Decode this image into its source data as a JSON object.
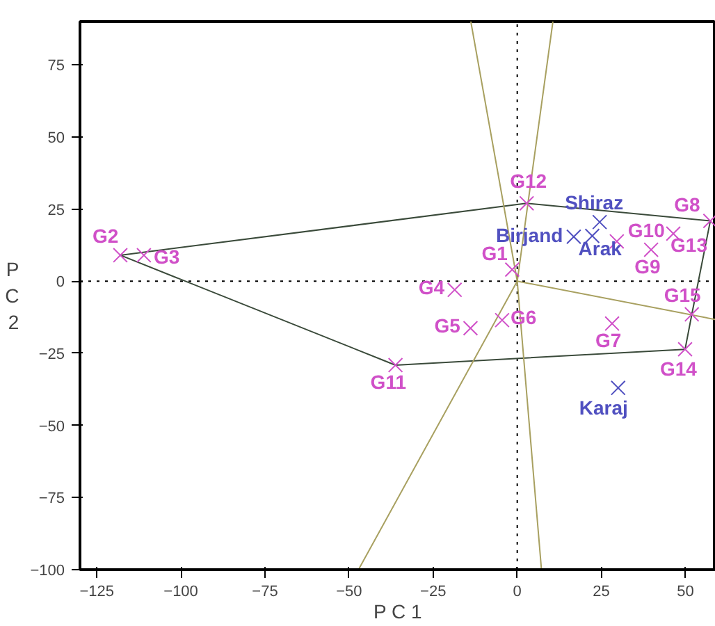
{
  "chart_data": {
    "type": "scatter",
    "xlabel": "P C 1",
    "ylabel": "P C 2",
    "xlim": [
      -130,
      59
    ],
    "ylim": [
      -100,
      90
    ],
    "xticks": [
      -125,
      -100,
      -75,
      -50,
      -25,
      0,
      25,
      50
    ],
    "yticks": [
      -100,
      -75,
      -50,
      -25,
      0,
      25,
      50,
      75
    ],
    "grid": false,
    "series": [
      {
        "type": "line",
        "color": "#000000",
        "line_style": "dotted",
        "x": [
          0,
          0
        ],
        "values": [
          -100,
          90
        ]
      },
      {
        "type": "line",
        "color": "#000000",
        "line_style": "dotted",
        "x": [
          -130,
          59
        ],
        "values": [
          0,
          0
        ]
      },
      {
        "type": "line",
        "color": "#3a4a3a",
        "x": [
          -118,
          2.8,
          57.4,
          51.9,
          49.9,
          -36.2
        ],
        "values": [
          9,
          27,
          20.9,
          -11.5,
          -23.6,
          -29.1
        ]
      },
      {
        "type": "line",
        "color": "#3a4a3a",
        "x": [
          -36.2,
          -118
        ],
        "values": [
          -29.1,
          9
        ]
      },
      {
        "type": "line",
        "color": "#a8a060",
        "x": [
          -13.8,
          0,
          7.2
        ],
        "values": [
          90,
          0,
          -100
        ]
      },
      {
        "type": "line",
        "color": "#a8a060",
        "x": [
          10.6,
          0,
          -47.2
        ],
        "values": [
          90,
          0,
          -100
        ]
      },
      {
        "type": "line",
        "color": "#a8a060",
        "x": [
          0,
          59
        ],
        "values": [
          0,
          -13.3
        ]
      },
      {
        "name": "G1",
        "color": "#d050c8",
        "marker": "cross",
        "x": [
          -1.5
        ],
        "values": [
          4
        ]
      },
      {
        "name": "G2",
        "color": "#d050c8",
        "marker": "cross",
        "x": [
          -118
        ],
        "values": [
          9
        ]
      },
      {
        "name": "G3",
        "color": "#d050c8",
        "marker": "cross",
        "x": [
          -111
        ],
        "values": [
          9
        ]
      },
      {
        "name": "G4",
        "color": "#d050c8",
        "marker": "cross",
        "x": [
          -18.6
        ],
        "values": [
          -3
        ]
      },
      {
        "name": "G5",
        "color": "#d050c8",
        "marker": "cross",
        "x": [
          -13.9
        ],
        "values": [
          -16.3
        ]
      },
      {
        "name": "G6",
        "color": "#d050c8",
        "marker": "cross",
        "x": [
          -4.5
        ],
        "values": [
          -13.5
        ]
      },
      {
        "name": "G7",
        "color": "#d050c8",
        "marker": "cross",
        "x": [
          28.2
        ],
        "values": [
          -14.7
        ]
      },
      {
        "name": "G8",
        "color": "#d050c8",
        "marker": "cross",
        "x": [
          57.4
        ],
        "values": [
          20.9
        ]
      },
      {
        "name": "G9",
        "color": "#d050c8",
        "marker": "cross",
        "x": [
          39.8
        ],
        "values": [
          10.9
        ]
      },
      {
        "name": "G10",
        "color": "#d050c8",
        "marker": "cross",
        "x": [
          29.6
        ],
        "values": [
          13.8
        ]
      },
      {
        "name": "G11",
        "color": "#d050c8",
        "marker": "cross",
        "x": [
          -36.2
        ],
        "values": [
          -29.1
        ]
      },
      {
        "name": "G12",
        "color": "#d050c8",
        "marker": "cross",
        "x": [
          2.8
        ],
        "values": [
          27
        ]
      },
      {
        "name": "G13",
        "color": "#d050c8",
        "marker": "cross",
        "x": [
          46.4
        ],
        "values": [
          16.5
        ]
      },
      {
        "name": "G14",
        "color": "#d050c8",
        "marker": "cross",
        "x": [
          49.9
        ],
        "values": [
          -23.6
        ]
      },
      {
        "name": "G15",
        "color": "#d050c8",
        "marker": "cross",
        "x": [
          51.9
        ],
        "values": [
          -11.5
        ]
      },
      {
        "name": "Shiraz",
        "color": "#5050c0",
        "marker": "cross",
        "x": [
          24.5
        ],
        "values": [
          20.5
        ]
      },
      {
        "name": "Birjand",
        "color": "#5050c0",
        "marker": "cross",
        "x": [
          16.8
        ],
        "values": [
          15.4
        ]
      },
      {
        "name": "Arak",
        "color": "#5050c0",
        "marker": "cross",
        "x": [
          22.3
        ],
        "values": [
          15.7
        ]
      },
      {
        "name": "Karaj",
        "color": "#5050c0",
        "marker": "cross",
        "x": [
          30
        ],
        "values": [
          -37
        ]
      }
    ]
  }
}
